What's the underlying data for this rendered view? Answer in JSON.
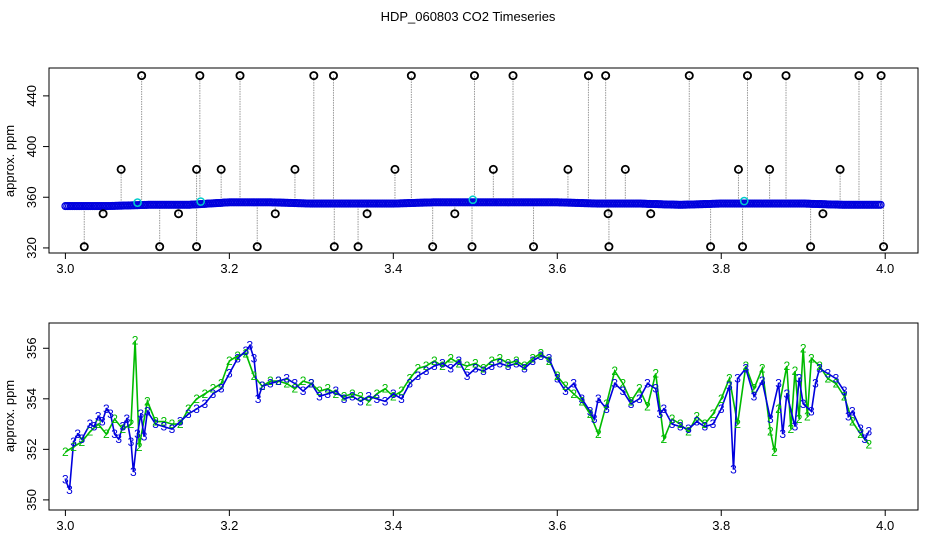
{
  "title": "HDP_060803  CO2 Timeseries",
  "colors": {
    "outlier": "#000000",
    "main": "#0000dd",
    "alt": "#00bb00",
    "cyan": "#00cccc",
    "spike": "#999999"
  },
  "chart_data": [
    {
      "type": "scatter",
      "title": "",
      "xlabel": "",
      "ylabel": "approx. ppm",
      "xlim": [
        2.98,
        4.04
      ],
      "ylim": [
        316,
        462
      ],
      "xticks": [
        "3.0",
        "3.2",
        "3.4",
        "3.6",
        "3.8",
        "4.0"
      ],
      "yticks": [
        "320",
        "360",
        "400",
        "440"
      ],
      "grid": false,
      "baseline": [
        [
          3.0,
          353
        ],
        [
          3.05,
          353
        ],
        [
          3.1,
          354
        ],
        [
          3.15,
          354
        ],
        [
          3.2,
          356
        ],
        [
          3.25,
          356
        ],
        [
          3.3,
          355
        ],
        [
          3.35,
          355
        ],
        [
          3.4,
          355
        ],
        [
          3.45,
          356
        ],
        [
          3.5,
          356
        ],
        [
          3.55,
          356
        ],
        [
          3.6,
          356
        ],
        [
          3.65,
          355
        ],
        [
          3.7,
          355
        ],
        [
          3.75,
          354
        ],
        [
          3.8,
          355
        ],
        [
          3.85,
          355
        ],
        [
          3.9,
          355
        ],
        [
          3.95,
          354
        ],
        [
          3.995,
          354
        ]
      ],
      "outliers_high": [
        3.093,
        3.164,
        3.213,
        3.303,
        3.327,
        3.422,
        3.499,
        3.546,
        3.638,
        3.659,
        3.761,
        3.832,
        3.879,
        3.968,
        3.995
      ],
      "outliers_mid": [
        3.068,
        3.16,
        3.19,
        3.28,
        3.402,
        3.522,
        3.613,
        3.683,
        3.821,
        3.859,
        3.945
      ],
      "outliers_low": [
        3.023,
        3.115,
        3.16,
        3.234,
        3.328,
        3.357,
        3.448,
        3.496,
        3.571,
        3.663,
        3.787,
        3.826,
        3.909,
        3.998
      ],
      "outliers_low2": [
        3.046,
        3.138,
        3.256,
        3.368,
        3.475,
        3.662,
        3.714,
        3.924
      ],
      "outlier_values": {
        "high": 456,
        "mid": 382,
        "low": 321,
        "low2": 347
      }
    },
    {
      "type": "line",
      "title": "",
      "xlabel": "",
      "ylabel": "approx. ppm",
      "xlim": [
        2.98,
        4.04
      ],
      "ylim": [
        349.6,
        357.0
      ],
      "xticks": [
        "3.0",
        "3.2",
        "3.4",
        "3.6",
        "3.8",
        "4.0"
      ],
      "yticks": [
        "350",
        "352",
        "354",
        "356"
      ],
      "grid": false,
      "series": [
        {
          "marker": "3",
          "points": [
            [
              3.0,
              350.8
            ],
            [
              3.005,
              350.4
            ],
            [
              3.01,
              352.3
            ],
            [
              3.015,
              352.6
            ],
            [
              3.02,
              352.4
            ],
            [
              3.03,
              353.0
            ],
            [
              3.035,
              352.9
            ],
            [
              3.04,
              353.3
            ],
            [
              3.045,
              353.1
            ],
            [
              3.05,
              353.6
            ],
            [
              3.055,
              353.4
            ],
            [
              3.06,
              352.6
            ],
            [
              3.065,
              352.4
            ],
            [
              3.07,
              352.9
            ],
            [
              3.075,
              353.2
            ],
            [
              3.08,
              352.3
            ],
            [
              3.083,
              351.1
            ],
            [
              3.088,
              352.6
            ],
            [
              3.092,
              353.4
            ],
            [
              3.096,
              352.5
            ],
            [
              3.1,
              353.5
            ],
            [
              3.11,
              353.0
            ],
            [
              3.12,
              352.9
            ],
            [
              3.13,
              352.8
            ],
            [
              3.14,
              353.1
            ],
            [
              3.15,
              353.4
            ],
            [
              3.16,
              353.6
            ],
            [
              3.17,
              353.8
            ],
            [
              3.18,
              354.2
            ],
            [
              3.19,
              354.4
            ],
            [
              3.2,
              355.0
            ],
            [
              3.21,
              355.6
            ],
            [
              3.22,
              355.9
            ],
            [
              3.225,
              356.1
            ],
            [
              3.23,
              355.6
            ],
            [
              3.235,
              354.0
            ],
            [
              3.24,
              354.5
            ],
            [
              3.25,
              354.6
            ],
            [
              3.26,
              354.7
            ],
            [
              3.27,
              354.8
            ],
            [
              3.28,
              354.6
            ],
            [
              3.29,
              354.3
            ],
            [
              3.3,
              354.6
            ],
            [
              3.31,
              354.1
            ],
            [
              3.32,
              354.2
            ],
            [
              3.33,
              354.3
            ],
            [
              3.34,
              354.0
            ],
            [
              3.35,
              354.1
            ],
            [
              3.36,
              353.9
            ],
            [
              3.37,
              354.1
            ],
            [
              3.38,
              354.0
            ],
            [
              3.39,
              353.9
            ],
            [
              3.4,
              354.2
            ],
            [
              3.41,
              354.0
            ],
            [
              3.42,
              354.6
            ],
            [
              3.43,
              354.9
            ],
            [
              3.44,
              355.1
            ],
            [
              3.45,
              355.3
            ],
            [
              3.46,
              355.4
            ],
            [
              3.47,
              355.2
            ],
            [
              3.48,
              355.5
            ],
            [
              3.49,
              354.9
            ],
            [
              3.5,
              355.2
            ],
            [
              3.51,
              355.1
            ],
            [
              3.52,
              355.3
            ],
            [
              3.53,
              355.4
            ],
            [
              3.54,
              355.3
            ],
            [
              3.55,
              355.4
            ],
            [
              3.56,
              355.2
            ],
            [
              3.57,
              355.5
            ],
            [
              3.58,
              355.7
            ],
            [
              3.59,
              355.6
            ],
            [
              3.6,
              354.8
            ],
            [
              3.61,
              354.3
            ],
            [
              3.62,
              354.6
            ],
            [
              3.63,
              354.0
            ],
            [
              3.64,
              353.5
            ],
            [
              3.645,
              353.2
            ],
            [
              3.65,
              354.0
            ],
            [
              3.66,
              353.6
            ],
            [
              3.67,
              354.6
            ],
            [
              3.68,
              354.3
            ],
            [
              3.69,
              353.8
            ],
            [
              3.7,
              354.0
            ],
            [
              3.71,
              354.6
            ],
            [
              3.72,
              354.4
            ],
            [
              3.725,
              353.4
            ],
            [
              3.73,
              353.6
            ],
            [
              3.74,
              353.0
            ],
            [
              3.75,
              352.9
            ],
            [
              3.76,
              352.8
            ],
            [
              3.77,
              353.1
            ],
            [
              3.78,
              352.9
            ],
            [
              3.79,
              353.0
            ],
            [
              3.8,
              353.6
            ],
            [
              3.81,
              354.5
            ],
            [
              3.815,
              351.2
            ],
            [
              3.82,
              354.8
            ],
            [
              3.83,
              355.2
            ],
            [
              3.84,
              354.1
            ],
            [
              3.85,
              354.7
            ],
            [
              3.86,
              353.2
            ],
            [
              3.87,
              354.6
            ],
            [
              3.875,
              352.6
            ],
            [
              3.88,
              354.2
            ],
            [
              3.89,
              352.9
            ],
            [
              3.895,
              354.8
            ],
            [
              3.9,
              353.8
            ],
            [
              3.91,
              353.5
            ],
            [
              3.915,
              354.6
            ],
            [
              3.92,
              355.2
            ],
            [
              3.93,
              355.0
            ],
            [
              3.94,
              354.8
            ],
            [
              3.95,
              354.3
            ],
            [
              3.955,
              353.3
            ],
            [
              3.96,
              353.5
            ],
            [
              3.97,
              352.8
            ],
            [
              3.975,
              352.4
            ],
            [
              3.98,
              352.7
            ]
          ]
        },
        {
          "marker": "2",
          "points": [
            [
              3.0,
              351.9
            ],
            [
              3.01,
              352.1
            ],
            [
              3.02,
              352.3
            ],
            [
              3.03,
              352.7
            ],
            [
              3.04,
              353.0
            ],
            [
              3.05,
              352.6
            ],
            [
              3.06,
              353.2
            ],
            [
              3.07,
              352.8
            ],
            [
              3.08,
              353.0
            ],
            [
              3.085,
              356.3
            ],
            [
              3.09,
              352.1
            ],
            [
              3.1,
              353.9
            ],
            [
              3.11,
              353.1
            ],
            [
              3.12,
              353.1
            ],
            [
              3.13,
              353.0
            ],
            [
              3.14,
              353.0
            ],
            [
              3.15,
              353.6
            ],
            [
              3.16,
              354.0
            ],
            [
              3.17,
              354.2
            ],
            [
              3.18,
              354.4
            ],
            [
              3.19,
              354.6
            ],
            [
              3.2,
              355.5
            ],
            [
              3.21,
              355.7
            ],
            [
              3.22,
              355.8
            ],
            [
              3.23,
              354.9
            ],
            [
              3.24,
              354.5
            ],
            [
              3.25,
              354.7
            ],
            [
              3.26,
              354.7
            ],
            [
              3.27,
              354.6
            ],
            [
              3.28,
              354.4
            ],
            [
              3.29,
              354.7
            ],
            [
              3.3,
              354.6
            ],
            [
              3.31,
              354.3
            ],
            [
              3.32,
              354.4
            ],
            [
              3.33,
              354.2
            ],
            [
              3.34,
              354.1
            ],
            [
              3.35,
              354.2
            ],
            [
              3.36,
              354.1
            ],
            [
              3.37,
              353.9
            ],
            [
              3.38,
              354.2
            ],
            [
              3.39,
              354.4
            ],
            [
              3.4,
              354.1
            ],
            [
              3.41,
              354.3
            ],
            [
              3.42,
              354.8
            ],
            [
              3.43,
              355.2
            ],
            [
              3.44,
              355.3
            ],
            [
              3.45,
              355.5
            ],
            [
              3.46,
              355.3
            ],
            [
              3.47,
              355.6
            ],
            [
              3.48,
              355.4
            ],
            [
              3.49,
              355.3
            ],
            [
              3.5,
              355.4
            ],
            [
              3.51,
              355.2
            ],
            [
              3.52,
              355.5
            ],
            [
              3.53,
              355.6
            ],
            [
              3.54,
              355.4
            ],
            [
              3.55,
              355.5
            ],
            [
              3.56,
              355.3
            ],
            [
              3.57,
              355.6
            ],
            [
              3.58,
              355.8
            ],
            [
              3.59,
              355.5
            ],
            [
              3.6,
              354.9
            ],
            [
              3.61,
              354.5
            ],
            [
              3.62,
              354.2
            ],
            [
              3.63,
              353.9
            ],
            [
              3.64,
              353.4
            ],
            [
              3.65,
              352.6
            ],
            [
              3.66,
              353.8
            ],
            [
              3.67,
              355.1
            ],
            [
              3.68,
              354.6
            ],
            [
              3.69,
              353.9
            ],
            [
              3.7,
              354.4
            ],
            [
              3.71,
              353.7
            ],
            [
              3.72,
              355.0
            ],
            [
              3.73,
              352.4
            ],
            [
              3.74,
              353.2
            ],
            [
              3.75,
              353.0
            ],
            [
              3.76,
              352.7
            ],
            [
              3.77,
              353.3
            ],
            [
              3.78,
              353.0
            ],
            [
              3.79,
              353.4
            ],
            [
              3.8,
              354.0
            ],
            [
              3.81,
              354.8
            ],
            [
              3.82,
              353.0
            ],
            [
              3.83,
              355.3
            ],
            [
              3.84,
              354.4
            ],
            [
              3.85,
              355.2
            ],
            [
              3.86,
              352.7
            ],
            [
              3.865,
              351.9
            ],
            [
              3.87,
              353.6
            ],
            [
              3.88,
              355.3
            ],
            [
              3.885,
              352.8
            ],
            [
              3.89,
              355.1
            ],
            [
              3.895,
              353.2
            ],
            [
              3.9,
              356.0
            ],
            [
              3.905,
              353.3
            ],
            [
              3.91,
              355.6
            ],
            [
              3.92,
              355.3
            ],
            [
              3.93,
              354.8
            ],
            [
              3.94,
              354.6
            ],
            [
              3.95,
              354.1
            ],
            [
              3.96,
              353.1
            ],
            [
              3.97,
              352.6
            ],
            [
              3.98,
              352.2
            ]
          ]
        }
      ]
    }
  ]
}
